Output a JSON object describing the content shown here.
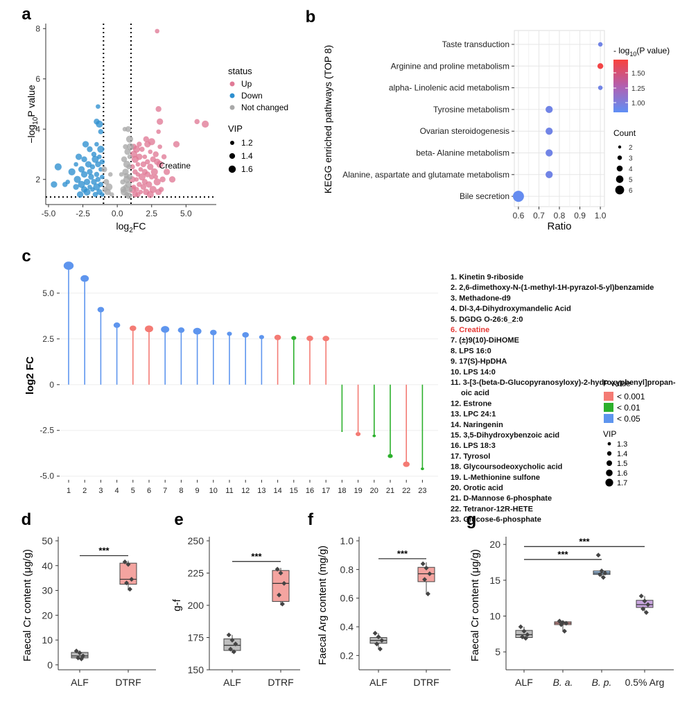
{
  "panel_letters": [
    "a",
    "b",
    "c",
    "d",
    "e",
    "f",
    "g"
  ],
  "chart_data": [
    {
      "panel": "a",
      "type": "scatter",
      "xlabel": "log₂FC",
      "ylabel": "−log₁₀P value",
      "xlim": [
        -5.2,
        7.2
      ],
      "ylim": [
        1.0,
        8.2
      ],
      "xticks": [
        -5.0,
        -2.5,
        0.0,
        2.5,
        5.0
      ],
      "yticks": [
        2,
        4,
        6,
        8
      ],
      "grid": false,
      "vlines": [
        -1,
        1
      ],
      "hline": 1.3,
      "annotation": {
        "text": "Creatine",
        "x": 3.05,
        "y": 2.55
      },
      "legend": {
        "status_title": "status",
        "status": [
          {
            "label": "Up",
            "color": "#E07A96"
          },
          {
            "label": "Down",
            "color": "#2E8FCF"
          },
          {
            "label": "Not changed",
            "color": "#A8A8A8"
          }
        ],
        "vip_title": "VIP",
        "vip": [
          "1.2",
          "1.4",
          "1.6"
        ]
      },
      "series": [
        {
          "name": "Up",
          "color": "#E07A96",
          "points": [
            [
              2.9,
              7.9
            ],
            [
              3.0,
              4.8
            ],
            [
              6.4,
              4.2
            ],
            [
              5.8,
              4.3
            ],
            [
              3.1,
              4.3
            ],
            [
              3.0,
              3.9
            ],
            [
              2.1,
              3.6
            ],
            [
              2.5,
              3.5
            ],
            [
              1.6,
              3.4
            ],
            [
              2.2,
              3.4
            ],
            [
              3.1,
              3.3
            ],
            [
              1.2,
              3.3
            ],
            [
              1.4,
              3.2
            ],
            [
              1.8,
              3.2
            ],
            [
              4.3,
              3.4
            ],
            [
              2.4,
              3.1
            ],
            [
              2.8,
              3.0
            ],
            [
              1.2,
              3.0
            ],
            [
              3.4,
              2.9
            ],
            [
              1.6,
              2.9
            ],
            [
              2.0,
              2.9
            ],
            [
              2.6,
              2.8
            ],
            [
              1.3,
              2.8
            ],
            [
              2.2,
              2.7
            ],
            [
              2.9,
              2.7
            ],
            [
              1.5,
              2.6
            ],
            [
              1.9,
              2.6
            ],
            [
              3.1,
              2.6
            ],
            [
              1.1,
              2.5
            ],
            [
              2.4,
              2.5
            ],
            [
              1.7,
              2.4
            ],
            [
              2.0,
              2.3
            ],
            [
              2.7,
              2.3
            ],
            [
              1.3,
              2.3
            ],
            [
              3.6,
              2.3
            ],
            [
              1.5,
              2.2
            ],
            [
              2.2,
              2.2
            ],
            [
              1.8,
              2.1
            ],
            [
              2.5,
              2.1
            ],
            [
              1.1,
              2.0
            ],
            [
              1.4,
              2.0
            ],
            [
              2.0,
              1.9
            ],
            [
              2.9,
              1.9
            ],
            [
              1.6,
              1.8
            ],
            [
              2.3,
              1.8
            ],
            [
              1.2,
              1.7
            ],
            [
              1.9,
              1.7
            ],
            [
              2.6,
              1.6
            ],
            [
              1.4,
              1.6
            ],
            [
              2.1,
              1.5
            ],
            [
              1.7,
              1.5
            ],
            [
              1.3,
              1.4
            ],
            [
              2.4,
              1.4
            ],
            [
              3.2,
              1.6
            ],
            [
              4.0,
              2.0
            ],
            [
              2.8,
              2.1
            ],
            [
              3.3,
              2.0
            ],
            [
              1.1,
              1.6
            ],
            [
              1.5,
              1.4
            ],
            [
              3.0,
              1.5
            ]
          ]
        },
        {
          "name": "Down",
          "color": "#2E8FCF",
          "points": [
            [
              -1.4,
              4.9
            ],
            [
              -1.5,
              4.3
            ],
            [
              -1.3,
              4.2
            ],
            [
              -1.2,
              3.9
            ],
            [
              -2.3,
              3.4
            ],
            [
              -1.5,
              3.4
            ],
            [
              -2.0,
              3.2
            ],
            [
              -1.2,
              3.2
            ],
            [
              -1.7,
              3.0
            ],
            [
              -2.8,
              2.9
            ],
            [
              -1.3,
              2.9
            ],
            [
              -2.4,
              2.8
            ],
            [
              -1.6,
              2.8
            ],
            [
              -1.1,
              2.7
            ],
            [
              -2.1,
              2.6
            ],
            [
              -3.0,
              2.6
            ],
            [
              -1.4,
              2.6
            ],
            [
              -4.3,
              2.5
            ],
            [
              -1.8,
              2.5
            ],
            [
              -2.6,
              2.4
            ],
            [
              -1.2,
              2.4
            ],
            [
              -2.0,
              2.3
            ],
            [
              -3.3,
              2.3
            ],
            [
              -1.5,
              2.2
            ],
            [
              -2.4,
              2.2
            ],
            [
              -1.1,
              2.1
            ],
            [
              -1.9,
              2.1
            ],
            [
              -2.9,
              2.0
            ],
            [
              -1.4,
              2.0
            ],
            [
              -2.2,
              1.9
            ],
            [
              -3.6,
              1.9
            ],
            [
              -1.7,
              1.9
            ],
            [
              -2.6,
              1.8
            ],
            [
              -1.2,
              1.8
            ],
            [
              -4.6,
              1.8
            ],
            [
              -2.0,
              1.7
            ],
            [
              -3.0,
              1.7
            ],
            [
              -1.5,
              1.7
            ],
            [
              -3.8,
              1.8
            ],
            [
              -2.4,
              1.6
            ],
            [
              -1.8,
              1.6
            ],
            [
              -1.3,
              1.5
            ],
            [
              -2.2,
              1.5
            ],
            [
              -1.6,
              1.4
            ],
            [
              -2.7,
              1.4
            ],
            [
              -1.1,
              1.4
            ]
          ]
        },
        {
          "name": "Not changed",
          "color": "#A8A8A8",
          "points": [
            [
              0.55,
              4.0
            ],
            [
              0.8,
              4.0
            ],
            [
              0.9,
              3.6
            ],
            [
              0.6,
              3.3
            ],
            [
              0.75,
              3.1
            ],
            [
              0.9,
              2.9
            ],
            [
              0.5,
              2.8
            ],
            [
              0.7,
              2.6
            ],
            [
              0.85,
              2.5
            ],
            [
              0.6,
              2.3
            ],
            [
              0.3,
              2.2
            ],
            [
              0.9,
              2.1
            ],
            [
              0.7,
              2.0
            ],
            [
              0.4,
              1.9
            ],
            [
              0.8,
              1.8
            ],
            [
              0.6,
              1.7
            ],
            [
              0.9,
              1.6
            ],
            [
              0.5,
              1.5
            ],
            [
              0.7,
              1.4
            ],
            [
              0.85,
              1.35
            ],
            [
              -0.5,
              2.2
            ],
            [
              -0.8,
              1.9
            ],
            [
              -0.6,
              1.7
            ],
            [
              -0.9,
              1.6
            ],
            [
              -0.7,
              1.5
            ],
            [
              -0.4,
              1.4
            ],
            [
              -0.95,
              2.4
            ],
            [
              0.95,
              3.3
            ],
            [
              0.65,
              2.15
            ],
            [
              0.45,
              1.6
            ]
          ]
        }
      ]
    },
    {
      "panel": "b",
      "type": "scatter",
      "ylabel": "KEGG enriched pathways (TOP 8)",
      "xlabel": "Ratio",
      "xlim": [
        0.58,
        1.02
      ],
      "xticks": [
        "0.6",
        "0.7",
        "0.8",
        "0.9",
        "1.0"
      ],
      "grid": true,
      "categories": [
        "Taste transduction",
        "Arginine and proline metabolism",
        "alpha- Linolenic acid metabolism",
        "Tyrosine metabolism",
        "Ovarian steroidogenesis",
        "beta- Alanine metabolism",
        "Alanine, aspartate and glutamate metabolism",
        "Bile secretion"
      ],
      "ratio": [
        1.0,
        1.0,
        1.0,
        0.75,
        0.75,
        0.75,
        0.75,
        0.6
      ],
      "count": [
        1,
        2,
        1,
        3,
        3,
        3,
        3,
        6
      ],
      "neg_log10_p": [
        0.95,
        1.72,
        0.95,
        0.95,
        0.95,
        0.95,
        0.95,
        0.88
      ],
      "legend": {
        "color_title": "- log₁₀(P value)",
        "color_ticks": [
          "1.50",
          "1.25",
          "1.00"
        ],
        "color_low": "#5F8FF5",
        "color_mid": "#B25FB0",
        "color_high": "#F8423E",
        "size_title": "Count",
        "size_ticks": [
          "2",
          "3",
          "4",
          "5",
          "6"
        ]
      }
    },
    {
      "panel": "c",
      "type": "bar",
      "ylabel": "log2 FC",
      "ylim": [
        -5.2,
        7.0
      ],
      "yticks": [
        "5.0",
        "2.5",
        "0",
        "-2.5",
        "-5.0"
      ],
      "categories": [
        "1",
        "2",
        "3",
        "4",
        "5",
        "6",
        "7",
        "8",
        "9",
        "10",
        "11",
        "12",
        "13",
        "14",
        "15",
        "16",
        "17",
        "18",
        "19",
        "20",
        "21",
        "22",
        "23"
      ],
      "values": [
        6.5,
        5.8,
        4.1,
        3.25,
        3.08,
        3.05,
        3.02,
        2.98,
        2.92,
        2.85,
        2.78,
        2.72,
        2.6,
        2.58,
        2.55,
        2.53,
        2.52,
        -2.55,
        -2.7,
        -2.8,
        -3.9,
        -4.35,
        -4.6
      ],
      "pclass": [
        "b",
        "b",
        "b",
        "b",
        "r",
        "r",
        "b",
        "b",
        "b",
        "b",
        "b",
        "b",
        "b",
        "r",
        "g",
        "r",
        "r",
        "g",
        "r",
        "g",
        "g",
        "r",
        "g"
      ],
      "vip": [
        1.7,
        1.6,
        1.5,
        1.5,
        1.5,
        1.6,
        1.6,
        1.5,
        1.6,
        1.5,
        1.4,
        1.5,
        1.4,
        1.5,
        1.4,
        1.5,
        1.5,
        1.2,
        1.4,
        1.3,
        1.4,
        1.5,
        1.3
      ],
      "colors": {
        "r": "#F47B74",
        "g": "#2CB02C",
        "b": "#5E95EE"
      },
      "compounds": [
        "1. Kinetin 9-riboside",
        "2. 2,6-dimethoxy-N-(1-methyl-1H-pyrazol-5-yl)benzamide",
        "3. Methadone-d9",
        "4. Dl-3,4-Dihydroxymandelic Acid",
        "5. DGDG O-26:6_2:0",
        "6. Creatine",
        "7. (±)9(10)-DiHOME",
        "8. LPS 16:0",
        "9. 17(S)-HpDHA",
        "10. LPS 14:0",
        "11. 3-[3-(beta-D-Glucopyranosyloxy)-2-hydroxyphenyl]propan-",
        "oic acid",
        "12. Estrone",
        "13. LPC 24:1",
        "14. Naringenin",
        "15. 3,5-Dihydroxybenzoic acid",
        "16. LPS 18:3",
        "17. Tyrosol",
        "18. Glycoursodeoxycholic acid",
        "19. L-Methionine sulfone",
        "20. Orotic acid",
        "21. D-Mannose 6-phosphate",
        "22. Tetranor-12R-HETE",
        "23. Glucose-6-phosphate"
      ],
      "highlight_compound": 5,
      "legend": {
        "p_title": "P value",
        "p_items": [
          {
            "label": "< 0.001",
            "color": "#F47B74"
          },
          {
            "label": "< 0.01",
            "color": "#2CB02C"
          },
          {
            "label": "< 0.05",
            "color": "#5E95EE"
          }
        ],
        "vip_title": "VIP",
        "vip_items": [
          "1.3",
          "1.4",
          "1.5",
          "1.6",
          "1.7"
        ]
      }
    },
    {
      "panel": "d",
      "type": "box",
      "ylabel": "Faecal Cr content (μg/g)",
      "ylim": [
        -2,
        50
      ],
      "yticks": [
        "0",
        "10",
        "20",
        "30",
        "40",
        "50"
      ],
      "categories": [
        "ALF",
        "DTRF"
      ],
      "boxes": [
        {
          "q1": 2.8,
          "median": 3.6,
          "q3": 5.0,
          "min": 2.3,
          "max": 5.8,
          "points": [
            5.6,
            4.8,
            3.6,
            2.8,
            2.4
          ],
          "color": "#BDBDBD"
        },
        {
          "q1": 32.5,
          "median": 34.5,
          "q3": 41.0,
          "min": 30.0,
          "max": 42.0,
          "points": [
            41.5,
            40.5,
            34.5,
            33.0,
            30.5
          ],
          "color": "#F4A4A0"
        }
      ],
      "significance": [
        {
          "from": 0,
          "to": 1,
          "label": "***",
          "y": 44
        }
      ]
    },
    {
      "panel": "e",
      "type": "box",
      "ylabel": "g-f",
      "ylim": [
        150,
        250
      ],
      "yticks": [
        "150",
        "175",
        "200",
        "225",
        "250"
      ],
      "categories": [
        "ALF",
        "DTRF"
      ],
      "boxes": [
        {
          "q1": 165,
          "median": 169,
          "q3": 174,
          "min": 163,
          "max": 177,
          "points": [
            177,
            173,
            170,
            166,
            164
          ],
          "color": "#BDBDBD"
        },
        {
          "q1": 203,
          "median": 217,
          "q3": 227,
          "min": 200,
          "max": 229,
          "points": [
            228,
            225,
            217,
            208,
            201
          ],
          "color": "#F4A4A0"
        }
      ],
      "significance": [
        {
          "from": 0,
          "to": 1,
          "label": "***",
          "y": 234
        }
      ]
    },
    {
      "panel": "f",
      "type": "box",
      "ylabel": "Faecal Arg content (mg/g)",
      "ylim": [
        0.1,
        1.0
      ],
      "yticks": [
        "0.2",
        "0.4",
        "0.6",
        "0.8",
        "1.0"
      ],
      "categories": [
        "ALF",
        "DTRF"
      ],
      "boxes": [
        {
          "q1": 0.285,
          "median": 0.305,
          "q3": 0.325,
          "min": 0.245,
          "max": 0.355,
          "points": [
            0.355,
            0.33,
            0.305,
            0.28,
            0.245
          ],
          "color": "#BDBDBD"
        },
        {
          "q1": 0.715,
          "median": 0.77,
          "q3": 0.815,
          "min": 0.625,
          "max": 0.85,
          "points": [
            0.84,
            0.81,
            0.77,
            0.73,
            0.63
          ],
          "color": "#F4A4A0"
        }
      ],
      "significance": [
        {
          "from": 0,
          "to": 1,
          "label": "***",
          "y": 0.875
        }
      ]
    },
    {
      "panel": "g",
      "type": "box",
      "ylabel": "Faecal Cr content (μg/g)",
      "ylim": [
        2.5,
        20.5
      ],
      "yticks": [
        "5",
        "10",
        "15",
        "20"
      ],
      "categories": [
        "ALF",
        "B. a.",
        "B. p.",
        "0.5% Arg"
      ],
      "italic_categories": [
        false,
        true,
        true,
        false
      ],
      "boxes": [
        {
          "q1": 7.0,
          "median": 7.4,
          "q3": 8.0,
          "min": 6.8,
          "max": 8.5,
          "points": [
            8.5,
            7.9,
            7.4,
            7.1,
            6.9
          ],
          "color": "#BDBDBD"
        },
        {
          "q1": 8.8,
          "median": 9.0,
          "q3": 9.2,
          "min": 7.9,
          "max": 9.3,
          "points": [
            9.3,
            9.1,
            9.0,
            8.8,
            7.9
          ],
          "color": "#F4A4A0"
        },
        {
          "q1": 15.8,
          "median": 16.0,
          "q3": 16.3,
          "min": 15.4,
          "max": 16.5,
          "points": [
            18.5,
            16.3,
            16.0,
            15.8,
            15.4
          ],
          "color": "#9EC2E6"
        },
        {
          "q1": 11.2,
          "median": 11.6,
          "q3": 12.2,
          "min": 10.5,
          "max": 12.8,
          "points": [
            12.8,
            12.1,
            11.6,
            11.0,
            10.5
          ],
          "color": "#C9A6DF"
        }
      ],
      "significance": [
        {
          "from": 0,
          "to": 3,
          "label": "***",
          "y": 19.7
        },
        {
          "from": 0,
          "to": 2,
          "label": "***",
          "y": 17.9
        }
      ]
    }
  ]
}
